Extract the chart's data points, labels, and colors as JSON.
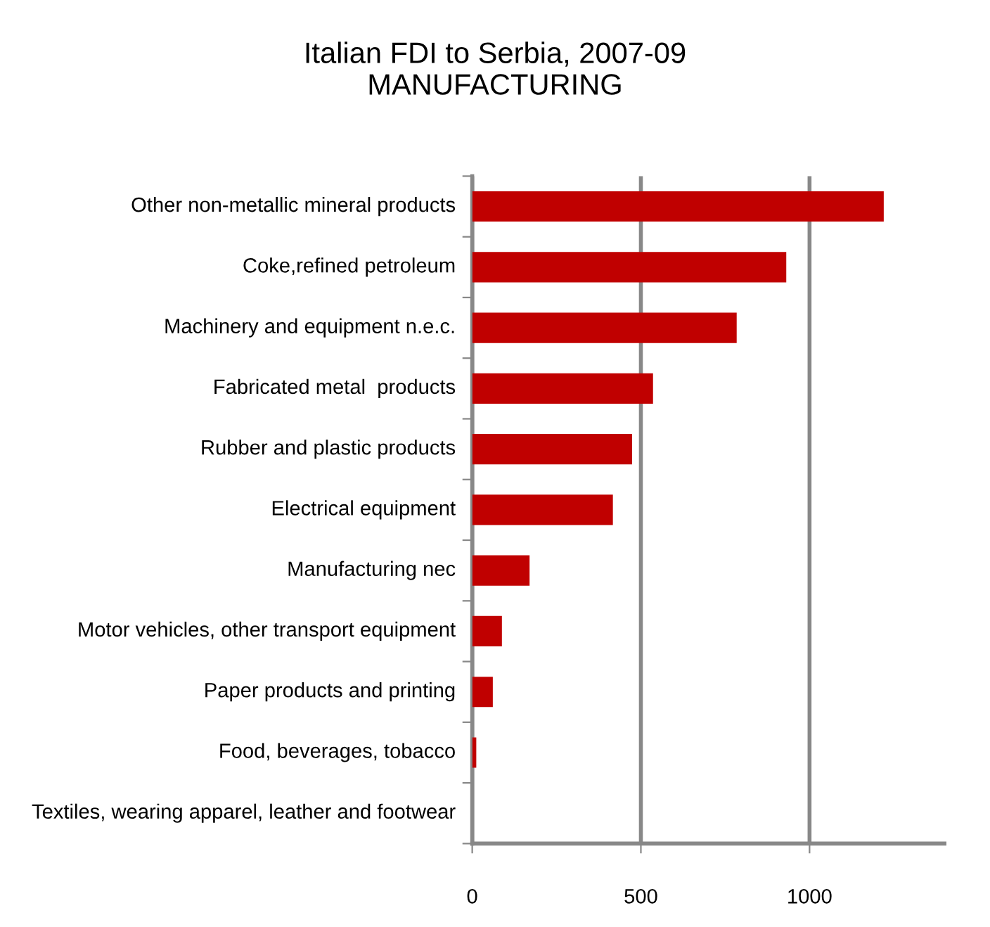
{
  "chart_data": {
    "type": "bar",
    "orientation": "horizontal",
    "title": "Italian FDI to Serbia, 2007-09\nMANUFACTURING",
    "categories": [
      "Other non-metallic mineral products",
      "Coke,refined petroleum",
      "Machinery and equipment n.e.c.",
      "Fabricated metal  products",
      "Rubber and plastic products",
      "Electrical equipment",
      "Manufacturing nec",
      "Motor vehicles, other transport equipment",
      "Paper products and printing",
      "Food, beverages, tobacco",
      "Textiles, wearing apparel, leather and footwear"
    ],
    "values": [
      1220,
      931,
      784,
      536,
      474,
      417,
      170,
      88,
      61,
      12,
      0
    ],
    "color": "#c00000",
    "xlim": [
      0,
      1400
    ],
    "xticks": [
      0,
      500,
      1000
    ],
    "grid": "x",
    "legend": false
  }
}
